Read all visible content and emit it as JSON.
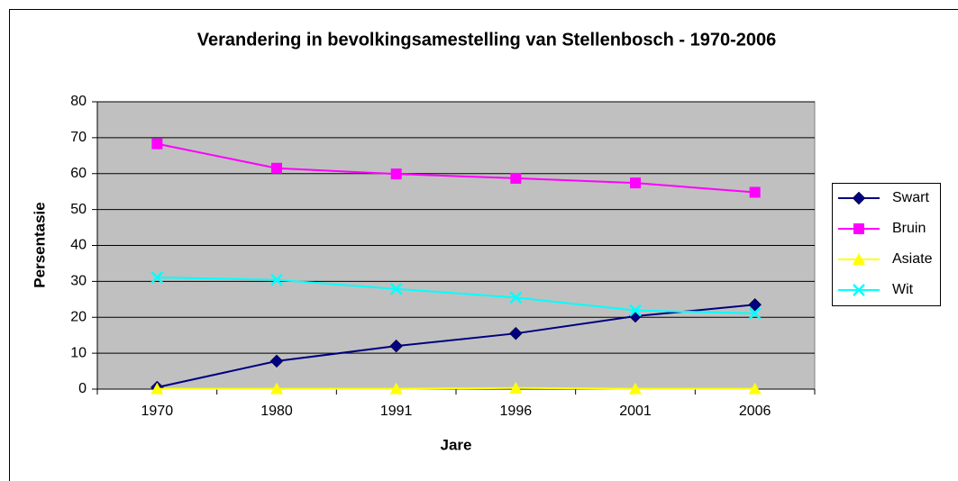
{
  "chart_data": {
    "type": "line",
    "title": "Verandering in bevolkingsamestelling van Stellenbosch - 1970-2006",
    "x_label": "Jare",
    "y_label": "Persentasie",
    "categories": [
      "1970",
      "1980",
      "1991",
      "1996",
      "2001",
      "2006"
    ],
    "series": [
      {
        "name": "Swart",
        "color": "#000080",
        "marker": "diamond",
        "values": [
          0.5,
          7.8,
          12,
          15.5,
          20.3,
          23.5
        ]
      },
      {
        "name": "Bruin",
        "color": "#ff00ff",
        "marker": "square",
        "values": [
          68.3,
          61.5,
          59.9,
          58.7,
          57.4,
          54.8
        ]
      },
      {
        "name": "Asiate",
        "color": "#ffff00",
        "marker": "triangle",
        "values": [
          0.1,
          0.1,
          0.1,
          0.3,
          0.1,
          0.1
        ]
      },
      {
        "name": "Wit",
        "color": "#00ffff",
        "marker": "x",
        "values": [
          31.1,
          30.4,
          27.9,
          25.5,
          21.9,
          21.1
        ]
      }
    ],
    "ylim": [
      0,
      80
    ],
    "yticks": [
      0,
      10,
      20,
      30,
      40,
      50,
      60,
      70,
      80
    ],
    "grid": true,
    "legend": "right"
  }
}
